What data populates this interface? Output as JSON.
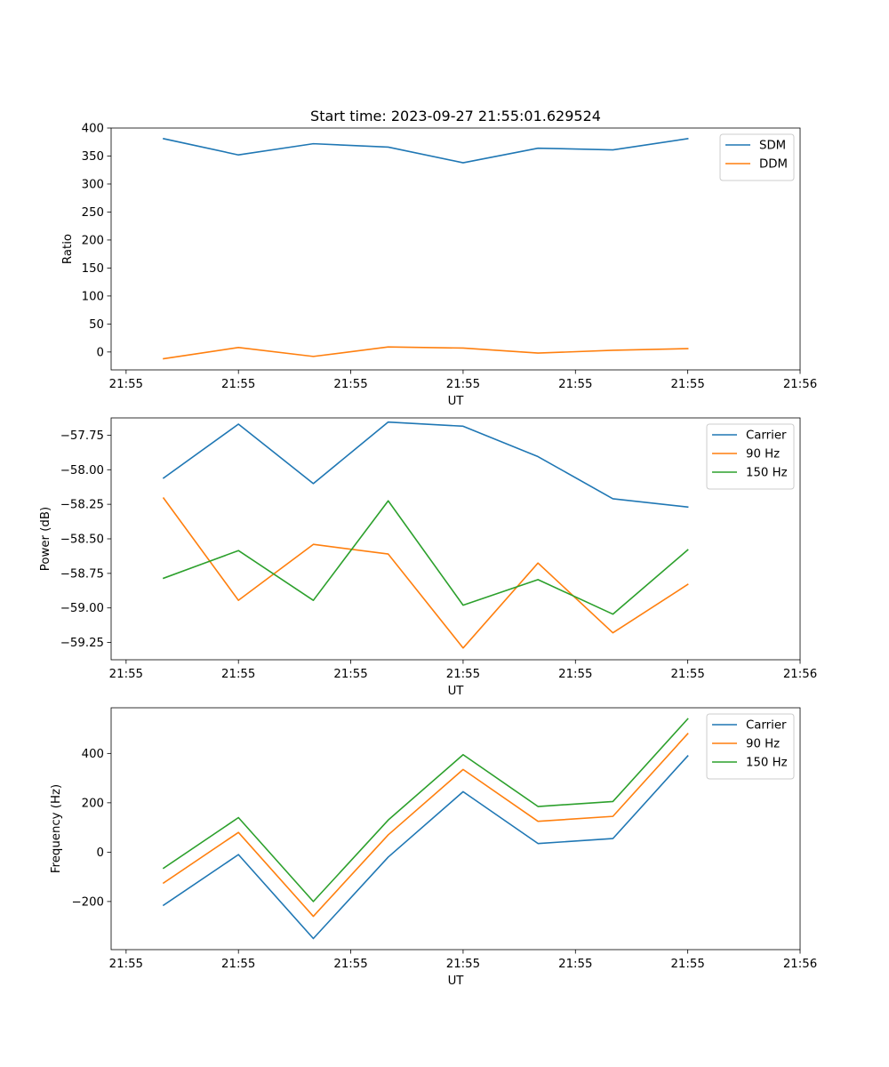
{
  "title": "Start time: 2023-09-27 21:55:01.629524",
  "chart_data": [
    {
      "type": "line",
      "title": "Start time: 2023-09-27 21:55:01.629524",
      "xlabel": "UT",
      "ylabel": "Ratio",
      "x": [
        0.5,
        1.5,
        2.5,
        3.5,
        4.5,
        5.5,
        6.5,
        7.5
      ],
      "xlim": [
        -0.2,
        9.0
      ],
      "xticks": [
        0,
        1.5,
        3,
        4.5,
        6,
        7.5,
        9
      ],
      "xtick_labels": [
        "21:55",
        "21:55",
        "21:55",
        "21:55",
        "21:55",
        "21:55",
        "21:56"
      ],
      "ylim": [
        -32,
        400
      ],
      "yticks": [
        0,
        50,
        100,
        150,
        200,
        250,
        300,
        350,
        400
      ],
      "ytick_labels": [
        "0",
        "50",
        "100",
        "150",
        "200",
        "250",
        "300",
        "350",
        "400"
      ],
      "legend_position": "top-right",
      "series": [
        {
          "name": "SDM",
          "color": "#1f77b4",
          "values": [
            381,
            352,
            372,
            366,
            338,
            364,
            361,
            381
          ]
        },
        {
          "name": "DDM",
          "color": "#ff7f0e",
          "values": [
            -12,
            8,
            -8,
            9,
            7,
            -2,
            3,
            6
          ]
        }
      ]
    },
    {
      "type": "line",
      "xlabel": "UT",
      "ylabel": "Power (dB)",
      "x": [
        0.5,
        1.5,
        2.5,
        3.5,
        4.5,
        5.5,
        6.5,
        7.5
      ],
      "xlim": [
        -0.2,
        9.0
      ],
      "xticks": [
        0,
        1.5,
        3,
        4.5,
        6,
        7.5,
        9
      ],
      "xtick_labels": [
        "21:55",
        "21:55",
        "21:55",
        "21:55",
        "21:55",
        "21:55",
        "21:56"
      ],
      "ylim": [
        -59.375,
        -57.625
      ],
      "yticks": [
        -59.25,
        -59.0,
        -58.75,
        -58.5,
        -58.25,
        -58.0,
        -57.75
      ],
      "ytick_labels": [
        "−59.25",
        "−59.00",
        "−58.75",
        "−58.50",
        "−58.25",
        "−58.00",
        "−57.75"
      ],
      "legend_position": "top-right",
      "series": [
        {
          "name": "Carrier",
          "color": "#1f77b4",
          "values": [
            -58.06,
            -57.67,
            -58.1,
            -57.655,
            -57.685,
            -57.905,
            -58.21,
            -58.27
          ]
        },
        {
          "name": "90 Hz",
          "color": "#ff7f0e",
          "values": [
            -58.205,
            -58.945,
            -58.54,
            -58.61,
            -59.29,
            -58.675,
            -59.18,
            -58.83
          ]
        },
        {
          "name": "150 Hz",
          "color": "#2ca02c",
          "values": [
            -58.785,
            -58.585,
            -58.945,
            -58.225,
            -58.98,
            -58.795,
            -59.045,
            -58.58
          ]
        }
      ]
    },
    {
      "type": "line",
      "xlabel": "UT",
      "ylabel": "Frequency (Hz)",
      "x": [
        0.5,
        1.5,
        2.5,
        3.5,
        4.5,
        5.5,
        6.5,
        7.5
      ],
      "xlim": [
        -0.2,
        9.0
      ],
      "xticks": [
        0,
        1.5,
        3,
        4.5,
        6,
        7.5,
        9
      ],
      "xtick_labels": [
        "21:55",
        "21:55",
        "21:55",
        "21:55",
        "21:55",
        "21:55",
        "21:56"
      ],
      "ylim": [
        -395,
        585
      ],
      "yticks": [
        -200,
        0,
        200,
        400
      ],
      "ytick_labels": [
        "−200",
        "0",
        "200",
        "400"
      ],
      "legend_position": "top-right",
      "series": [
        {
          "name": "Carrier",
          "color": "#1f77b4",
          "values": [
            -215,
            -10,
            -350,
            -20,
            245,
            35,
            55,
            390
          ]
        },
        {
          "name": "90 Hz",
          "color": "#ff7f0e",
          "values": [
            -125,
            80,
            -260,
            70,
            335,
            125,
            145,
            480
          ]
        },
        {
          "name": "150 Hz",
          "color": "#2ca02c",
          "values": [
            -65,
            140,
            -200,
            130,
            395,
            185,
            205,
            540
          ]
        }
      ]
    }
  ]
}
